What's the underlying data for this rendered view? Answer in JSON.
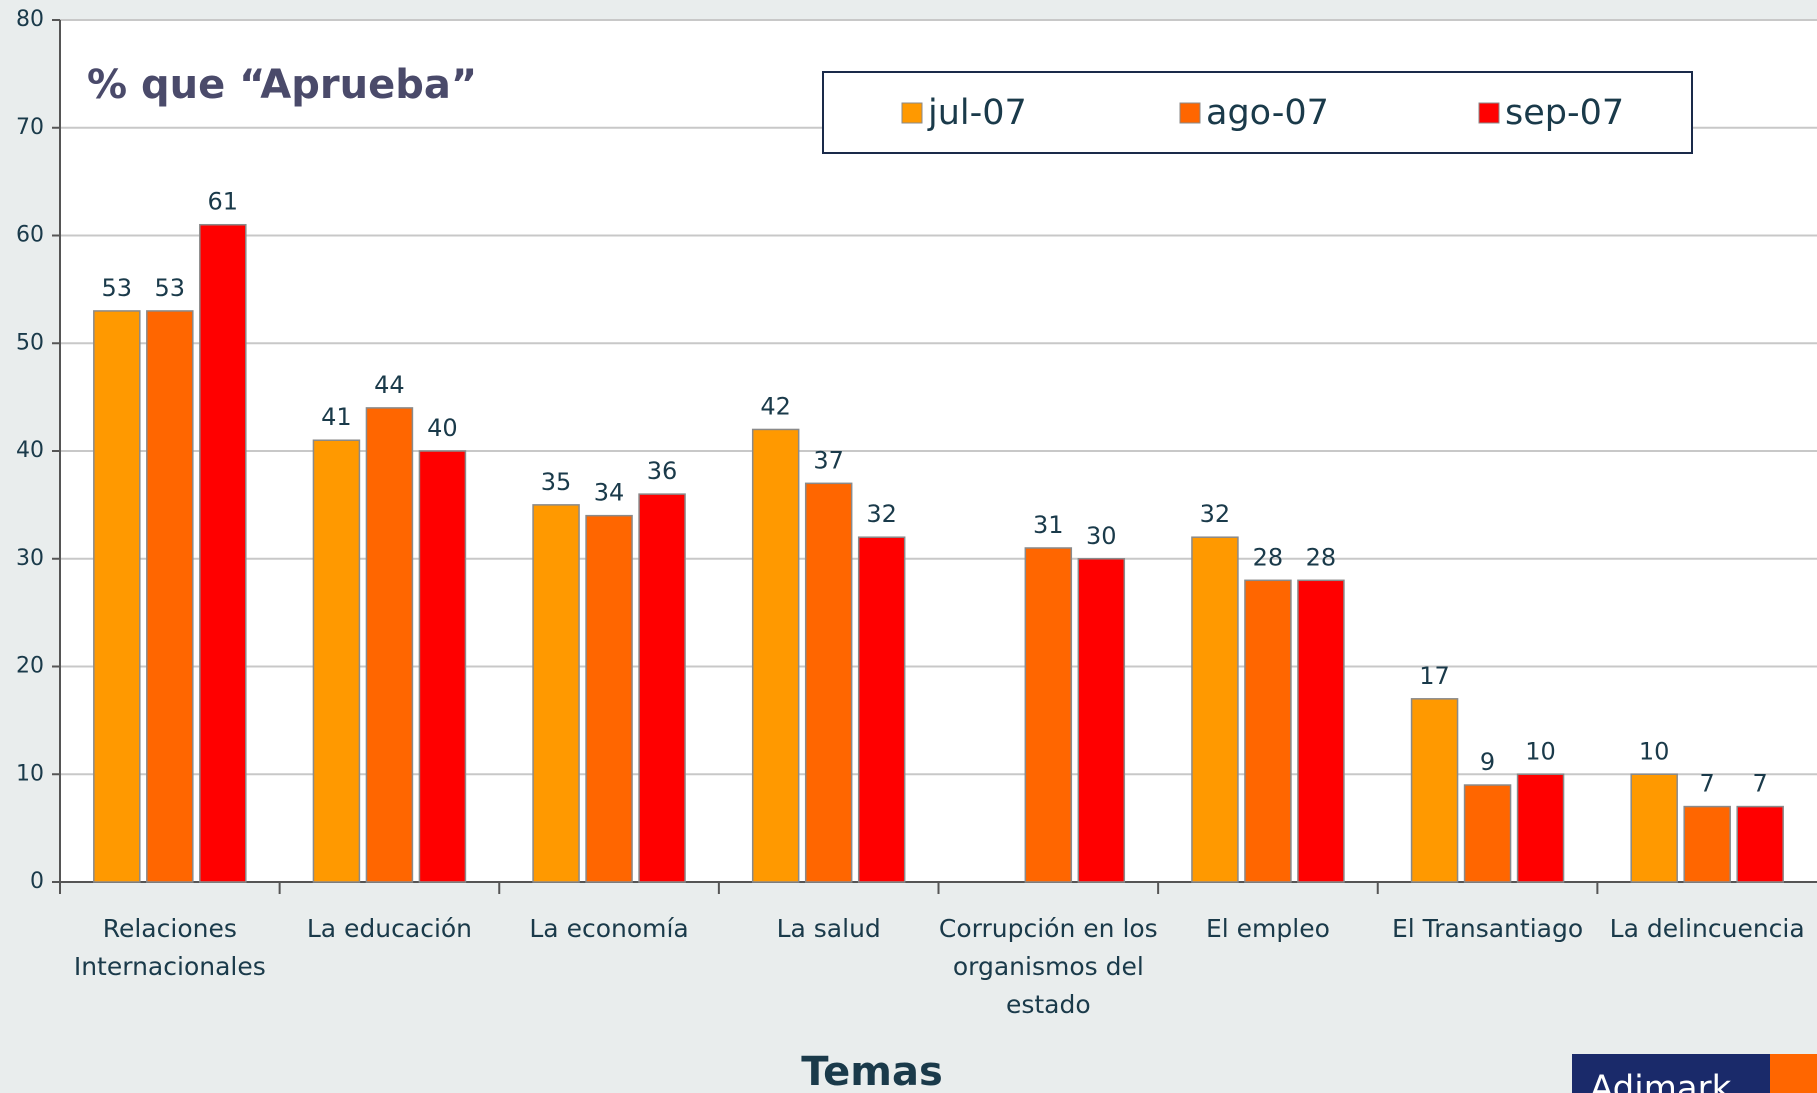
{
  "chart_data": {
    "type": "bar",
    "title": "% que “Aprueba”",
    "x_label": "Temas",
    "logo": "Adimark",
    "categories": [
      "Relaciones Internacionales",
      "La educación",
      "La economía",
      "La salud",
      "Corrupción en los organismos del estado",
      "El empleo",
      "El Transantiago",
      "La delincuencia"
    ],
    "series": [
      {
        "name": "jul-07",
        "color": "#FF9900",
        "values": [
          53,
          41,
          35,
          42,
          null,
          32,
          17,
          10
        ]
      },
      {
        "name": "ago-07",
        "color": "#FF6600",
        "values": [
          53,
          44,
          34,
          37,
          31,
          28,
          9,
          7
        ]
      },
      {
        "name": "sep-07",
        "color": "#FF0000",
        "values": [
          61,
          40,
          36,
          32,
          30,
          28,
          10,
          7
        ]
      }
    ],
    "ylim": [
      0,
      80
    ],
    "yticks": [
      0,
      10,
      20,
      30,
      40,
      50,
      60,
      70,
      80
    ],
    "grid": true,
    "legend": "top"
  }
}
